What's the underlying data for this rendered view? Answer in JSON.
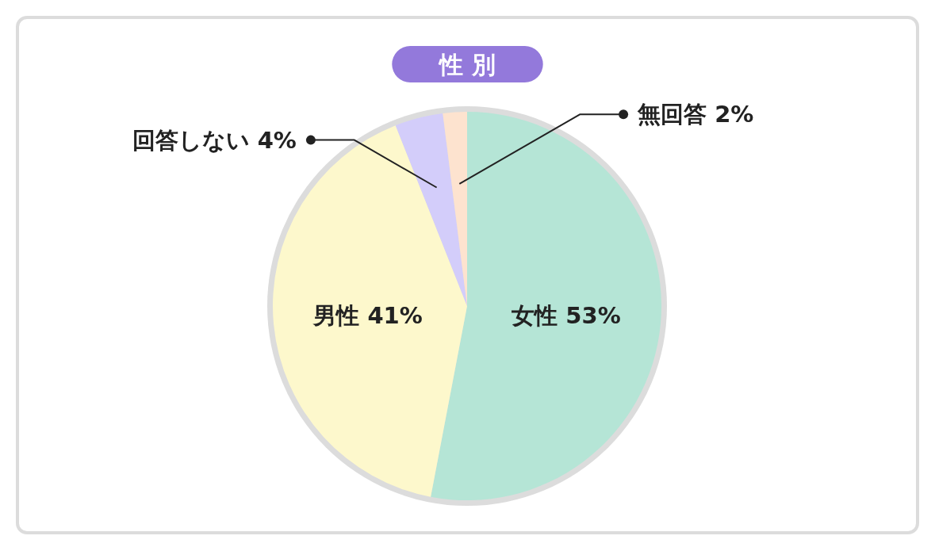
{
  "chart_data": {
    "type": "pie",
    "title": "性 別",
    "categories": [
      "女性",
      "男性",
      "回答しない",
      "無回答"
    ],
    "values": [
      53,
      41,
      4,
      2
    ],
    "value_labels": [
      "53%",
      "41%",
      "4%",
      "2%"
    ],
    "colors": [
      "#b5e5d6",
      "#fdf8cc",
      "#d3cdfa",
      "#fde3cf"
    ]
  }
}
